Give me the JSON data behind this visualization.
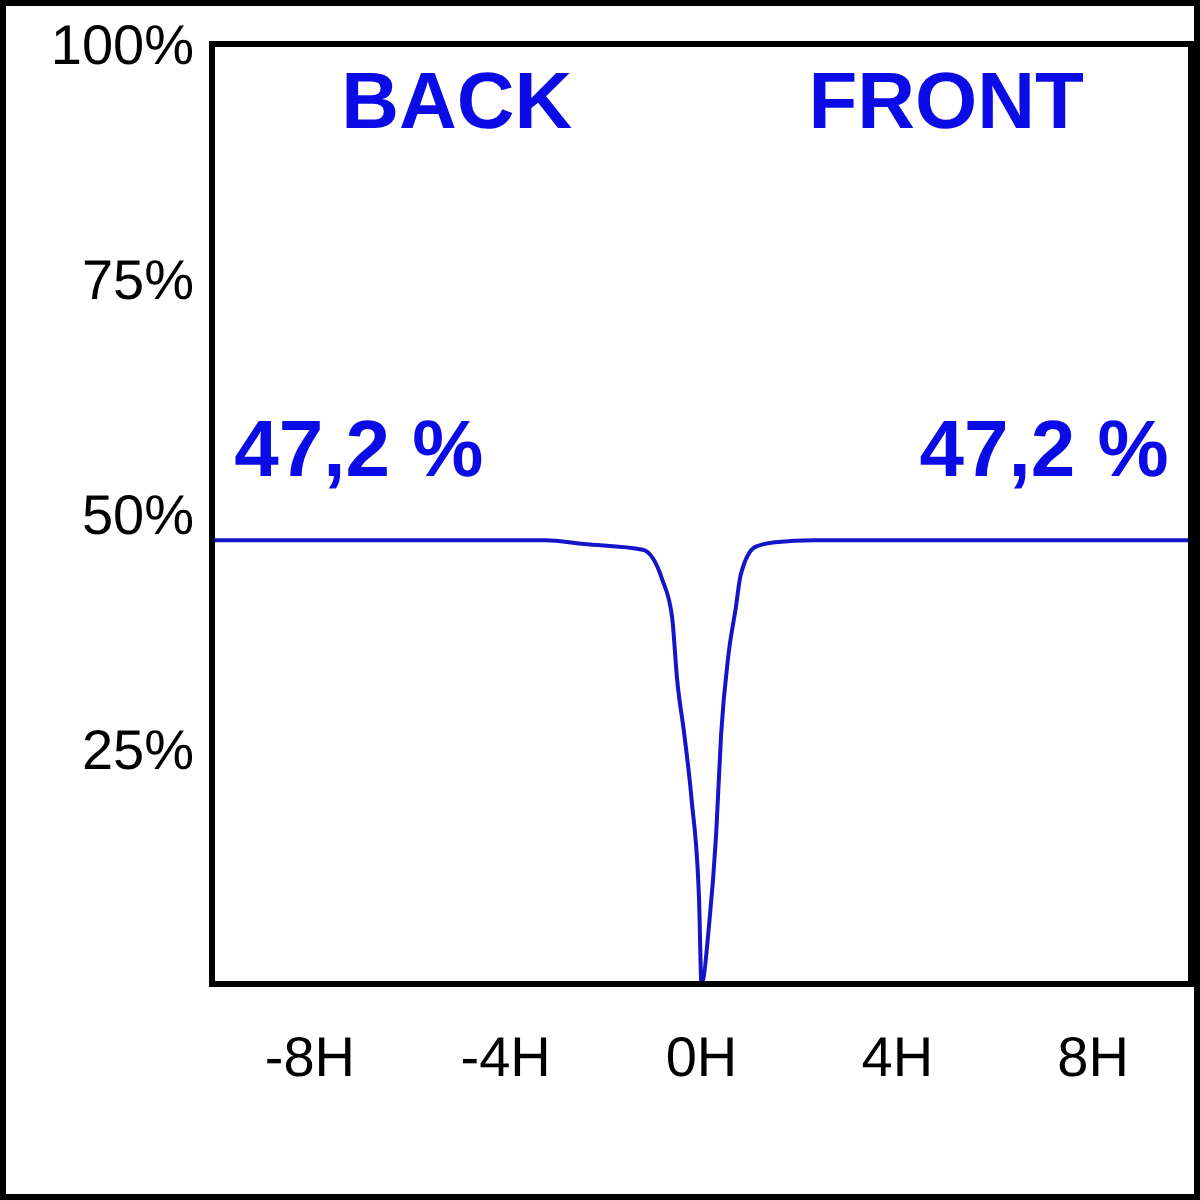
{
  "chart_data": {
    "type": "line",
    "x": [
      -10,
      -3.2,
      -2.4,
      -1.2,
      -0.8,
      -0.6,
      -0.5,
      -0.35,
      -0.2,
      -0.05,
      0,
      0.15,
      0.3,
      0.4,
      0.55,
      0.7,
      0.8,
      1.1,
      1.5,
      2.3,
      10
    ],
    "values": [
      47.2,
      47.2,
      46.8,
      46.2,
      43,
      39,
      32.5,
      26.5,
      19.5,
      9,
      0,
      6,
      16,
      26.5,
      35,
      40,
      43.5,
      46.5,
      47,
      47.2,
      47.2
    ],
    "color": "#1414c8",
    "xlim": [
      -10,
      10
    ],
    "xticks": [
      {
        "value": -8,
        "label": "-8H"
      },
      {
        "value": -4,
        "label": "-4H"
      },
      {
        "value": 0,
        "label": "0H"
      },
      {
        "value": 4,
        "label": "4H"
      },
      {
        "value": 8,
        "label": "8H"
      }
    ],
    "ylim": [
      0,
      100
    ],
    "yticks": [
      {
        "value": 25,
        "label": "25%"
      },
      {
        "value": 50,
        "label": "50%"
      },
      {
        "value": 75,
        "label": "75%"
      },
      {
        "value": 100,
        "label": "100%"
      }
    ],
    "annotations": [
      "BACK",
      "FRONT",
      {
        "text": "47,2 %",
        "x": -7,
        "y": 47.2
      },
      {
        "text": "47,2 %",
        "x": 7,
        "y": 47.2
      }
    ]
  }
}
